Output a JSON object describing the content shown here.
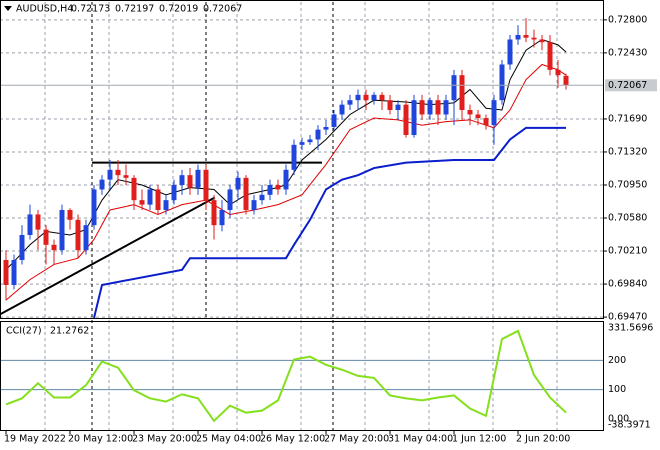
{
  "chart_data": [
    {
      "type": "candlestick",
      "title": "AUDUSD,H4",
      "categories": [
        "19 May 2022",
        null,
        null,
        null,
        null,
        null,
        null,
        null,
        "20 May 12:00",
        null,
        null,
        null,
        null,
        null,
        null,
        null,
        "23 May 20:00",
        null,
        null,
        null,
        null,
        null,
        null,
        null,
        "25 May 04:00",
        null,
        null,
        null,
        null,
        null,
        null,
        null,
        "26 May 12:00",
        null,
        null,
        null,
        null,
        null,
        null,
        null,
        "27 May 20:00",
        null,
        null,
        null,
        null,
        null,
        null,
        null,
        "31 May 04:00",
        null,
        null,
        null,
        null,
        null,
        null,
        null,
        "1 Jun 12:00",
        null,
        null,
        null,
        null,
        null,
        null,
        null,
        "2 Jun 20:00",
        null,
        null,
        null,
        null,
        null,
        null
      ],
      "open": [
        0.7011,
        0.6983,
        0.7011,
        0.7039,
        0.7062,
        0.7045,
        0.7028,
        0.7022,
        0.7067,
        0.7056,
        0.7022,
        0.705,
        0.709,
        0.7101,
        0.7112,
        0.7106,
        0.7103,
        0.7078,
        0.7073,
        0.709,
        0.7067,
        0.7078,
        0.7095,
        0.7106,
        0.7092,
        0.7112,
        0.7078,
        0.705,
        0.7067,
        0.709,
        0.7103,
        0.7067,
        0.7078,
        0.7084,
        0.7095,
        0.709,
        0.7112,
        0.714,
        0.7143,
        0.7146,
        0.7157,
        0.716,
        0.7174,
        0.7185,
        0.719,
        0.7196,
        0.719,
        0.7196,
        0.719,
        0.7179,
        0.7185,
        0.7151,
        0.719,
        0.7174,
        0.719,
        0.7174,
        0.719,
        0.7218,
        0.7179,
        0.7174,
        0.717,
        0.7162,
        0.719,
        0.723,
        0.7258,
        0.7263,
        0.726,
        0.7258,
        0.7255,
        0.7224,
        0.72173
      ],
      "high": [
        0.7022,
        0.7017,
        0.705,
        0.7073,
        0.7067,
        0.705,
        0.7034,
        0.7073,
        0.7069,
        0.7062,
        0.7056,
        0.7095,
        0.7106,
        0.7123,
        0.7123,
        0.7118,
        0.7106,
        0.709,
        0.7095,
        0.7095,
        0.7084,
        0.7101,
        0.7112,
        0.7114,
        0.7118,
        0.7118,
        0.7084,
        0.7078,
        0.7095,
        0.711,
        0.7106,
        0.7084,
        0.7095,
        0.7101,
        0.7101,
        0.7118,
        0.7146,
        0.7148,
        0.7151,
        0.7162,
        0.7168,
        0.7179,
        0.719,
        0.7196,
        0.7202,
        0.7202,
        0.7199,
        0.7199,
        0.7196,
        0.719,
        0.719,
        0.7196,
        0.7196,
        0.7193,
        0.7196,
        0.7196,
        0.7224,
        0.7224,
        0.7185,
        0.7179,
        0.7174,
        0.7196,
        0.7235,
        0.7263,
        0.7274,
        0.7282,
        0.7269,
        0.7263,
        0.7263,
        0.7235,
        0.72197
      ],
      "low": [
        0.6966,
        0.6978,
        0.7006,
        0.7034,
        0.7022,
        0.7006,
        0.7006,
        0.7017,
        0.7045,
        0.7013,
        0.7017,
        0.7045,
        0.7084,
        0.709,
        0.7095,
        0.7095,
        0.7067,
        0.7067,
        0.7067,
        0.7062,
        0.7062,
        0.7073,
        0.7084,
        0.7084,
        0.7084,
        0.7067,
        0.7034,
        0.7043,
        0.7058,
        0.7078,
        0.7062,
        0.7062,
        0.7073,
        0.7078,
        0.7084,
        0.7084,
        0.7106,
        0.7134,
        0.714,
        0.7134,
        0.7151,
        0.7157,
        0.7168,
        0.7179,
        0.7179,
        0.7179,
        0.7185,
        0.7179,
        0.7174,
        0.7168,
        0.7148,
        0.7148,
        0.7168,
        0.7168,
        0.7162,
        0.7168,
        0.7162,
        0.7168,
        0.7162,
        0.7162,
        0.7157,
        0.714,
        0.7185,
        0.7224,
        0.7252,
        0.7255,
        0.7249,
        0.7246,
        0.7218,
        0.7204,
        0.72019
      ],
      "close": [
        0.6983,
        0.7011,
        0.7039,
        0.7062,
        0.7045,
        0.7028,
        0.7022,
        0.7067,
        0.7056,
        0.7022,
        0.705,
        0.709,
        0.7101,
        0.7112,
        0.7106,
        0.7103,
        0.7078,
        0.7073,
        0.709,
        0.7067,
        0.7078,
        0.7095,
        0.7106,
        0.7092,
        0.7112,
        0.7078,
        0.705,
        0.7067,
        0.709,
        0.7103,
        0.7067,
        0.7078,
        0.7084,
        0.7095,
        0.709,
        0.7112,
        0.714,
        0.7143,
        0.7146,
        0.7157,
        0.716,
        0.7174,
        0.7185,
        0.719,
        0.7196,
        0.719,
        0.7196,
        0.719,
        0.7179,
        0.7185,
        0.7151,
        0.719,
        0.7174,
        0.719,
        0.7174,
        0.719,
        0.7218,
        0.7179,
        0.7174,
        0.717,
        0.7162,
        0.719,
        0.723,
        0.7258,
        0.7263,
        0.726,
        0.7258,
        0.7255,
        0.7224,
        0.7218,
        0.72067
      ],
      "up_color": "#1f45dc",
      "down_color": "#e01e1e",
      "lines": [
        {
          "color": "#0a1ecc",
          "x": [
            11,
            12,
            22,
            23,
            35,
            36,
            38,
            40,
            42,
            44,
            46,
            50,
            56,
            61,
            63,
            65,
            70
          ],
          "values": [
            0.6946,
            0.6983,
            0.7,
            0.7013,
            0.7013,
            0.7028,
            0.7056,
            0.709,
            0.7101,
            0.7106,
            0.7114,
            0.712,
            0.7123,
            0.7123,
            0.7146,
            0.7159,
            0.7159
          ]
        },
        {
          "color": "#000000",
          "x": [
            0,
            3,
            5,
            8,
            10,
            12,
            14,
            17,
            20,
            23,
            26,
            28,
            30,
            33,
            35,
            37,
            40,
            43,
            46,
            50,
            53,
            56,
            58,
            60,
            62,
            63,
            65,
            67,
            69,
            70
          ],
          "values": [
            0.7,
            0.7028,
            0.7043,
            0.7039,
            0.7045,
            0.7078,
            0.7101,
            0.7095,
            0.7084,
            0.7092,
            0.709,
            0.7073,
            0.7084,
            0.709,
            0.7095,
            0.7123,
            0.7146,
            0.7174,
            0.719,
            0.7188,
            0.7185,
            0.7187,
            0.7202,
            0.7181,
            0.7179,
            0.7213,
            0.7246,
            0.7258,
            0.7252,
            0.7244
          ]
        },
        {
          "color": "#e00000",
          "x": [
            0,
            3,
            6,
            9,
            11,
            13,
            16,
            19,
            22,
            25,
            28,
            31,
            34,
            37,
            40,
            43,
            46,
            49,
            52,
            55,
            58,
            61,
            63,
            65,
            67,
            69,
            70
          ],
          "values": [
            0.6966,
            0.6989,
            0.7006,
            0.7013,
            0.7034,
            0.7067,
            0.7073,
            0.7062,
            0.7073,
            0.7078,
            0.7062,
            0.7067,
            0.7073,
            0.7084,
            0.7118,
            0.7157,
            0.717,
            0.7168,
            0.7162,
            0.7166,
            0.7168,
            0.7159,
            0.7179,
            0.7213,
            0.723,
            0.7224,
            0.7218
          ]
        }
      ],
      "trendlines": [
        {
          "color": "#000000",
          "x": [
            10.75,
            39.5
          ],
          "values": [
            0.712,
            0.712
          ]
        },
        {
          "color": "#000000",
          "x": [
            -0.75,
            26.1
          ],
          "values": [
            0.695,
            0.7081
          ]
        }
      ],
      "ylim": [
        0.6946,
        0.73
      ],
      "yticks": [
        {
          "value": 0.728,
          "label": "0.72800"
        },
        {
          "value": 0.7243,
          "label": "0.72430"
        },
        {
          "value": 0.7169,
          "label": "0.71690"
        },
        {
          "value": 0.7132,
          "label": "0.71320"
        },
        {
          "value": 0.7095,
          "label": "0.70950"
        },
        {
          "value": 0.7058,
          "label": "0.70580"
        },
        {
          "value": 0.7021,
          "label": "0.70210"
        },
        {
          "value": 0.6984,
          "label": "0.69840"
        },
        {
          "value": 0.6947,
          "label": "0.69470"
        }
      ],
      "grid": true
    },
    {
      "type": "line",
      "title": "CCI(27)",
      "series": [
        {
          "color": "#84e01c",
          "x": [
            0,
            2,
            4,
            6,
            8,
            10,
            12,
            14,
            16,
            18,
            20,
            22,
            24,
            26,
            28,
            30,
            32,
            34,
            36,
            38,
            40,
            42,
            44,
            46,
            48,
            50,
            52,
            54,
            56,
            58,
            60,
            62,
            64,
            66,
            68,
            70
          ],
          "values": [
            49,
            70,
            122,
            73,
            73,
            115,
            196,
            175,
            98,
            70,
            59,
            84,
            70,
            -7,
            45,
            21,
            28,
            63,
            203,
            213,
            185,
            168,
            147,
            140,
            80,
            70,
            63,
            73,
            80,
            35,
            10,
            273,
            301,
            150,
            73,
            21.2762
          ]
        }
      ],
      "ylim": [
        -38.3971,
        331.5696
      ],
      "yticks": [
        {
          "value": 0,
          "label": "0.00"
        },
        100,
        200
      ],
      "grid": true
    }
  ]
}
